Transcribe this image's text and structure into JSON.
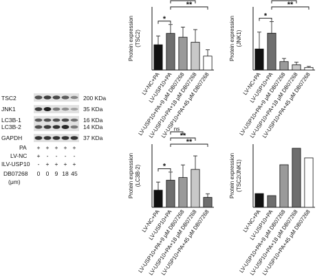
{
  "blot": {
    "rows": [
      {
        "protein": "TSC2",
        "size": "200 KDa"
      },
      {
        "protein": "JNK1",
        "size": "35 KDa"
      },
      {
        "protein": "LC3B-1",
        "size": "16 KDa"
      },
      {
        "protein": "LC3B-2",
        "size": "14 KDa"
      },
      {
        "protein": "GAPDH",
        "size": "37 KDa"
      }
    ],
    "treatment_rows": [
      {
        "label": "PA",
        "marks": [
          "+",
          "+",
          "+",
          "+",
          "+"
        ]
      },
      {
        "label": "LV-NC",
        "marks": [
          "+",
          "-",
          "-",
          "-",
          "-"
        ]
      },
      {
        "label": "ILV-USP10",
        "marks": [
          "-",
          "+",
          "+",
          "+",
          "+"
        ]
      },
      {
        "label": "DB07268",
        "marks": [
          "0",
          "0",
          "9",
          "18",
          "45"
        ]
      }
    ],
    "unit_label": "(μm)"
  },
  "chart_data": [
    {
      "type": "bar",
      "ylabel": "Protein expression (TSC2)",
      "ylabel_lines": [
        "Protein expression",
        "(TSC2)"
      ],
      "categories": [
        "LV-NC+PA",
        "LV-USP10+PA",
        "LV-USP10+PA+9 μM DB07268",
        "LV-USP10+PA+18 μM DB07268",
        "LV-USP10+PA+45 μM DB07268"
      ],
      "values": [
        1.0,
        1.45,
        1.3,
        1.1,
        0.55
      ],
      "errors": [
        0.35,
        0.35,
        0.4,
        0.5,
        0.25
      ],
      "colors": [
        "#111111",
        "#6e6e6e",
        "#9a9a9a",
        "#c8c8c8",
        "#ffffff"
      ],
      "error_bars": "one-sided",
      "ylim": [
        0,
        2.5
      ],
      "significance": [
        {
          "from": 0,
          "to": 1,
          "label": "*"
        },
        {
          "from": 1,
          "to": 2,
          "label": "ns"
        },
        {
          "from": 1,
          "to": 3,
          "label": "ns"
        },
        {
          "from": 1,
          "to": 4,
          "label": "**"
        }
      ]
    },
    {
      "type": "bar",
      "ylabel": "Protein expression (JNK1)",
      "ylabel_lines": [
        "Protein expression",
        "(JNK1)"
      ],
      "categories": [
        "LV-NC+PA",
        "LV-USP10+PA",
        "LV-USP10+PA+9 μM DB07268",
        "LV-USP10+PA+18 μM DB07268",
        "LV-USP10+PA+45 μM DB07268"
      ],
      "values": [
        1.0,
        1.75,
        0.4,
        0.25,
        0.12
      ],
      "errors": [
        0.8,
        0.55,
        0.15,
        0.12,
        0.05
      ],
      "colors": [
        "#111111",
        "#6e6e6e",
        "#9a9a9a",
        "#c8c8c8",
        "#ffffff"
      ],
      "error_bars": "one-sided",
      "ylim": [
        0,
        3.0
      ],
      "significance": [
        {
          "from": 0,
          "to": 1,
          "label": "*"
        },
        {
          "from": 1,
          "to": 2,
          "label": "**"
        },
        {
          "from": 1,
          "to": 3,
          "label": "**"
        },
        {
          "from": 1,
          "to": 4,
          "label": "**"
        }
      ]
    },
    {
      "type": "bar",
      "ylabel": "Protein expression (LC3B-2)",
      "ylabel_lines": [
        "Protein expression",
        "(LC3B-2)"
      ],
      "categories": [
        "LV-NC+PA",
        "LV-USP10+PA",
        "LV-USP10+PA+9 μM DB07268",
        "LV-USP10+PA+18 μM DB07268",
        "LV-USP10+PA+45 μM DB07268"
      ],
      "values": [
        0.95,
        1.5,
        1.65,
        2.1,
        0.55
      ],
      "errors": [
        0.45,
        0.45,
        0.7,
        0.75,
        0.2
      ],
      "colors": [
        "#111111",
        "#6e6e6e",
        "#9a9a9a",
        "#c8c8c8",
        "#6e6e6e"
      ],
      "error_bars": "one-sided",
      "ylim": [
        0,
        3.5
      ],
      "significance": [
        {
          "from": 0,
          "to": 1,
          "label": "*"
        },
        {
          "from": 1,
          "to": 2,
          "label": "ns"
        },
        {
          "from": 1,
          "to": 3,
          "label": "**"
        },
        {
          "from": 1,
          "to": 4,
          "label": "**"
        }
      ]
    },
    {
      "type": "bar",
      "ylabel": "Protein expression (TSC2/JNK1)",
      "ylabel_lines": [
        "Protein expression",
        "(TSC2/JNK1)"
      ],
      "categories": [
        "LV-NC+PA",
        "LV-USP10+PA",
        "LV-USP10+PA+9 μM DB07268",
        "LV-USP10+PA+18 μM DB07268",
        "LV-USP10+PA+45 μM DB07268"
      ],
      "values": [
        1.0,
        0.85,
        3.1,
        4.3,
        3.6
      ],
      "errors": [],
      "colors": [
        "#111111",
        "#6e6e6e",
        "#9a9a9a",
        "#6e6e6e",
        "#ffffff"
      ],
      "ylim": [
        0,
        4.6
      ],
      "significance": []
    }
  ]
}
